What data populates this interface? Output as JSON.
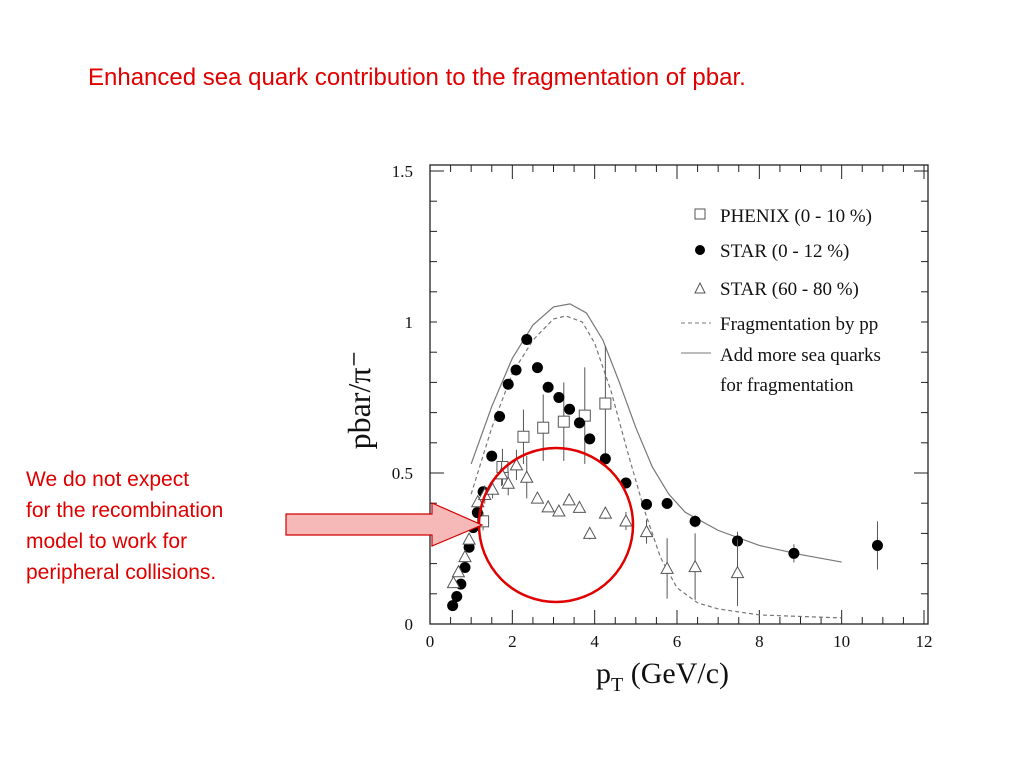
{
  "slide": {
    "title": "Enhanced sea quark contribution to the fragmentation of pbar.",
    "annotation_lines": [
      "We do not expect",
      "for the recombination",
      "model to work for",
      "peripheral collisions."
    ],
    "highlight_color": "#e00000"
  },
  "chart_data": {
    "type": "scatter",
    "title": "",
    "xlabel": "p_T (GeV/c)",
    "xlabel_main": "p",
    "xlabel_sub": "T",
    "xlabel_rest": " (GeV/c)",
    "ylabel": "pbar/π⁻",
    "xlim": [
      0,
      12
    ],
    "ylim": [
      0,
      1.5
    ],
    "xticks": [
      "0",
      "2",
      "4",
      "6",
      "8",
      "10",
      "12"
    ],
    "yticks": [
      "0",
      "0.5",
      "1",
      "1.5"
    ],
    "legend_position": "top-right",
    "series": [
      {
        "name": "PHENIX (0 - 10 %)",
        "marker": "open-square",
        "x": [
          1.29,
          1.76,
          2.27,
          2.75,
          3.25,
          3.76,
          4.26
        ],
        "y": [
          0.34,
          0.52,
          0.62,
          0.65,
          0.67,
          0.69,
          0.73
        ],
        "err": [
          0.03,
          0.06,
          0.09,
          0.11,
          0.13,
          0.16,
          0.19
        ]
      },
      {
        "name": "STAR (0 - 12 %)",
        "marker": "filled-circle",
        "x": [
          0.55,
          0.65,
          0.75,
          0.85,
          0.95,
          1.05,
          1.15,
          1.29,
          1.5,
          1.69,
          1.9,
          2.09,
          2.35,
          2.61,
          2.87,
          3.13,
          3.39,
          3.63,
          3.88,
          4.26,
          4.76,
          5.26,
          5.76,
          6.44,
          7.47,
          8.84,
          10.87
        ],
        "y": [
          0.061,
          0.091,
          0.132,
          0.187,
          0.254,
          0.319,
          0.369,
          0.438,
          0.556,
          0.687,
          0.794,
          0.841,
          0.942,
          0.849,
          0.784,
          0.75,
          0.711,
          0.666,
          0.613,
          0.547,
          0.467,
          0.396,
          0.399,
          0.34,
          0.275,
          0.234,
          0.26
        ],
        "err": [
          0,
          0,
          0,
          0,
          0,
          0,
          0,
          0,
          0,
          0,
          0,
          0,
          0,
          0,
          0,
          0,
          0,
          0,
          0,
          0,
          0,
          0,
          0,
          0.02,
          0.03,
          0.03,
          0.08
        ]
      },
      {
        "name": "STAR (60 - 80 %)",
        "marker": "open-triangle",
        "x": [
          0.57,
          0.69,
          0.85,
          0.95,
          1.16,
          1.33,
          1.52,
          1.74,
          1.9,
          2.1,
          2.35,
          2.61,
          2.87,
          3.13,
          3.38,
          3.63,
          3.88,
          4.26,
          4.76,
          5.26,
          5.76,
          6.44,
          7.47
        ],
        "y": [
          0.137,
          0.173,
          0.223,
          0.281,
          0.405,
          0.429,
          0.446,
          0.497,
          0.466,
          0.527,
          0.486,
          0.417,
          0.388,
          0.374,
          0.411,
          0.386,
          0.3,
          0.367,
          0.341,
          0.306,
          0.184,
          0.19,
          0.17
        ],
        "err": [
          0,
          0,
          0,
          0,
          0.02,
          0.03,
          0.03,
          0.04,
          0.04,
          0.05,
          0.07,
          0,
          0,
          0,
          0,
          0,
          0.02,
          0.02,
          0.03,
          0.04,
          0.1,
          0.11,
          0.11
        ]
      },
      {
        "name": "Fragmentation by pp",
        "marker": "dashed-line",
        "x": [
          1.0,
          1.5,
          2.0,
          2.5,
          3.0,
          3.3,
          3.7,
          4.0,
          4.4,
          4.8,
          5.2,
          5.6,
          6.0,
          6.5,
          7.0,
          8.0,
          10.0
        ],
        "y": [
          0.43,
          0.65,
          0.83,
          0.94,
          1.01,
          1.02,
          1.0,
          0.93,
          0.77,
          0.57,
          0.38,
          0.22,
          0.12,
          0.07,
          0.05,
          0.03,
          0.02
        ]
      },
      {
        "name": "Add more sea quarks",
        "name_line2": "for fragmentation",
        "marker": "solid-line",
        "x": [
          1.0,
          1.5,
          2.0,
          2.5,
          3.0,
          3.4,
          3.8,
          4.2,
          4.6,
          5.0,
          5.4,
          5.8,
          6.2,
          7.0,
          8.0,
          9.0,
          10.0
        ],
        "y": [
          0.53,
          0.72,
          0.88,
          0.99,
          1.05,
          1.06,
          1.03,
          0.94,
          0.8,
          0.65,
          0.52,
          0.43,
          0.37,
          0.31,
          0.26,
          0.23,
          0.205
        ]
      }
    ]
  }
}
